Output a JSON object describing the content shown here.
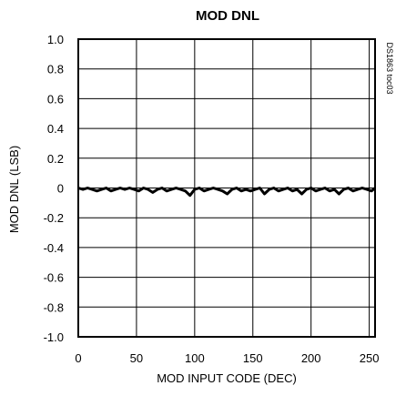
{
  "chart_data": {
    "type": "line",
    "title": "MOD DNL",
    "xlabel": "MOD INPUT CODE (DEC)",
    "ylabel": "MOD DNL (LSB)",
    "side_note": "DS1863 toc03",
    "xlim": [
      0,
      255
    ],
    "ylim": [
      -1.0,
      1.0
    ],
    "x_ticks": [
      0,
      50,
      100,
      150,
      200,
      250
    ],
    "y_ticks": [
      1.0,
      0.8,
      0.6,
      0.4,
      0.2,
      0,
      -0.2,
      -0.4,
      -0.6,
      -0.8,
      -1.0
    ],
    "x_tick_labels": [
      "0",
      "50",
      "100",
      "150",
      "200",
      "250"
    ],
    "y_tick_labels": [
      "1.0",
      "0.8",
      "0.6",
      "0.4",
      "0.2",
      "0",
      "-0.2",
      "-0.4",
      "-0.6",
      "-0.8",
      "-1.0"
    ],
    "grid": true,
    "series": [
      {
        "color": "#000000",
        "x": [
          0,
          4,
          8,
          12,
          16,
          20,
          24,
          28,
          32,
          36,
          40,
          44,
          48,
          52,
          56,
          60,
          64,
          68,
          72,
          76,
          80,
          84,
          88,
          92,
          96,
          100,
          104,
          108,
          112,
          116,
          120,
          124,
          128,
          132,
          136,
          140,
          144,
          148,
          152,
          156,
          160,
          164,
          168,
          172,
          176,
          180,
          184,
          188,
          192,
          196,
          200,
          204,
          208,
          212,
          216,
          220,
          224,
          228,
          232,
          236,
          240,
          244,
          248,
          252,
          255
        ],
        "y": [
          0.0,
          -0.01,
          0.0,
          -0.01,
          -0.02,
          -0.01,
          0.0,
          -0.02,
          -0.01,
          0.0,
          -0.01,
          0.0,
          -0.01,
          -0.02,
          0.0,
          -0.01,
          -0.03,
          -0.01,
          0.0,
          -0.02,
          -0.01,
          0.0,
          -0.01,
          -0.02,
          -0.05,
          -0.01,
          0.0,
          -0.02,
          -0.01,
          0.0,
          -0.01,
          -0.02,
          -0.04,
          -0.01,
          0.0,
          -0.02,
          -0.01,
          -0.02,
          -0.01,
          0.0,
          -0.04,
          -0.01,
          0.0,
          -0.02,
          -0.01,
          0.0,
          -0.02,
          -0.01,
          -0.04,
          -0.01,
          0.0,
          -0.02,
          -0.01,
          0.0,
          -0.02,
          -0.01,
          -0.04,
          -0.01,
          0.0,
          -0.02,
          -0.01,
          0.0,
          -0.01,
          -0.02,
          0.0
        ]
      }
    ]
  }
}
